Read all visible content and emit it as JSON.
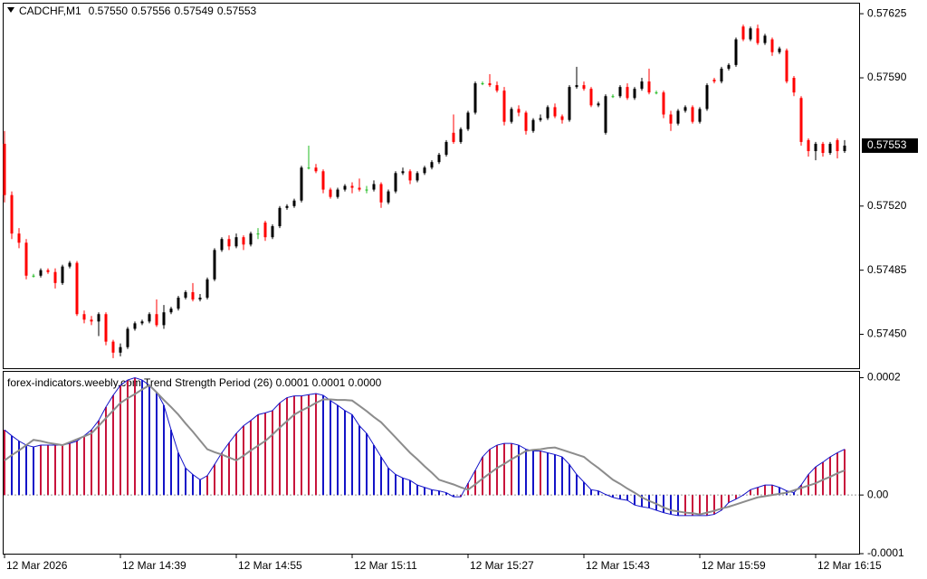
{
  "chart_data": [
    {
      "type": "candlestick",
      "title": "CADCHF,M1",
      "ohlc_labels": [
        "0.57550",
        "0.57556",
        "0.57549",
        "0.57553"
      ],
      "categories": [
        "12 Mar 2026",
        null,
        null,
        null,
        null,
        null,
        null,
        null,
        null,
        null,
        null,
        null,
        null,
        null,
        null,
        null,
        "12 Mar 14:39",
        null,
        null,
        null,
        null,
        null,
        null,
        null,
        null,
        null,
        null,
        null,
        null,
        null,
        null,
        null,
        "12 Mar 14:55",
        null,
        null,
        null,
        null,
        null,
        null,
        null,
        null,
        null,
        null,
        null,
        null,
        null,
        null,
        null,
        "12 Mar 15:11",
        null,
        null,
        null,
        null,
        null,
        null,
        null,
        null,
        null,
        null,
        null,
        null,
        null,
        null,
        null,
        "12 Mar 15:27",
        null,
        null,
        null,
        null,
        null,
        null,
        null,
        null,
        null,
        null,
        null,
        null,
        null,
        null,
        null,
        "12 Mar 15:43",
        null,
        null,
        null,
        null,
        null,
        null,
        null,
        null,
        null,
        null,
        null,
        null,
        null,
        null,
        null,
        "12 Mar 15:59",
        null,
        null,
        null,
        null,
        null,
        null,
        null,
        null,
        null,
        null,
        null,
        null,
        null,
        null,
        null,
        "12 Mar 16:15",
        null,
        null,
        null,
        null
      ],
      "open": [
        0.57554,
        0.57526,
        0.57505,
        0.575,
        0.57482,
        0.57482,
        0.57485,
        0.57484,
        0.57478,
        0.57487,
        0.57489,
        0.57461,
        0.57458,
        0.57457,
        0.57461,
        0.57446,
        0.5744,
        0.57443,
        0.57453,
        0.57456,
        0.57457,
        0.57461,
        0.57455,
        0.57462,
        0.57464,
        0.5747,
        0.57473,
        0.57469,
        0.5747,
        0.5748,
        0.57496,
        0.57502,
        0.57498,
        0.57503,
        0.57499,
        0.57505,
        0.57511,
        0.57503,
        0.57509,
        0.57519,
        0.5752,
        0.57523,
        0.57541,
        0.57541,
        0.57539,
        0.57529,
        0.57525,
        0.57529,
        0.57531,
        0.5753,
        0.57529,
        0.57529,
        0.57532,
        0.57522,
        0.57528,
        0.57538,
        0.57539,
        0.57534,
        0.57538,
        0.57541,
        0.57544,
        0.57548,
        0.5756,
        0.57555,
        0.57562,
        0.57571,
        0.57587,
        0.57587,
        0.57586,
        0.57583,
        0.57566,
        0.57573,
        0.57571,
        0.57561,
        0.57567,
        0.57568,
        0.57574,
        0.57569,
        0.57567,
        0.57585,
        0.57586,
        0.57584,
        0.57575,
        0.5756,
        0.5758,
        0.5758,
        0.57585,
        0.57579,
        0.57584,
        0.57588,
        0.57582,
        0.57582,
        0.5757,
        0.57565,
        0.57572,
        0.57574,
        0.57566,
        0.57573,
        0.57589,
        0.57588,
        0.57595,
        0.57597,
        0.57618,
        0.57611,
        0.57617,
        0.57609,
        0.57611,
        0.57604,
        0.57605,
        0.5759,
        0.57579,
        0.57556,
        0.5755,
        0.57554,
        0.57549,
        0.57556,
        0.5755
      ],
      "high": [
        0.57561,
        0.57528,
        0.57508,
        0.57502,
        0.57483,
        0.57486,
        0.57486,
        0.57486,
        0.57488,
        0.5749,
        0.5749,
        0.57463,
        0.5746,
        0.57462,
        0.57462,
        0.57447,
        0.57445,
        0.57454,
        0.57457,
        0.57458,
        0.57462,
        0.57469,
        0.57466,
        0.57465,
        0.57471,
        0.57474,
        0.57478,
        0.57472,
        0.57481,
        0.57497,
        0.57503,
        0.57504,
        0.57505,
        0.57504,
        0.57506,
        0.57508,
        0.57512,
        0.5751,
        0.5752,
        0.57521,
        0.57524,
        0.57542,
        0.57553,
        0.57543,
        0.5754,
        0.5753,
        0.5753,
        0.57532,
        0.57533,
        0.57535,
        0.57531,
        0.57534,
        0.57533,
        0.57529,
        0.57539,
        0.57541,
        0.5754,
        0.57539,
        0.57542,
        0.57545,
        0.57549,
        0.57556,
        0.5757,
        0.57563,
        0.57572,
        0.57588,
        0.57588,
        0.57592,
        0.57588,
        0.57585,
        0.57574,
        0.57575,
        0.57572,
        0.57568,
        0.5757,
        0.57575,
        0.57576,
        0.5757,
        0.57586,
        0.57596,
        0.57588,
        0.57585,
        0.57577,
        0.57581,
        0.57581,
        0.57586,
        0.57587,
        0.57585,
        0.5759,
        0.57595,
        0.57583,
        0.57583,
        0.57572,
        0.57573,
        0.57575,
        0.57575,
        0.57574,
        0.57587,
        0.5759,
        0.57596,
        0.57598,
        0.57612,
        0.57619,
        0.57618,
        0.57619,
        0.57614,
        0.57612,
        0.57607,
        0.57606,
        0.57591,
        0.5758,
        0.57557,
        0.57555,
        0.57555,
        0.57555,
        0.57557,
        0.57556
      ],
      "low": [
        0.57522,
        0.57502,
        0.57497,
        0.5748,
        0.57481,
        0.57481,
        0.57483,
        0.57475,
        0.57477,
        0.57486,
        0.5746,
        0.57456,
        0.57455,
        0.57449,
        0.57444,
        0.57437,
        0.57438,
        0.57442,
        0.57452,
        0.57455,
        0.57456,
        0.57454,
        0.57453,
        0.57461,
        0.57463,
        0.57469,
        0.57468,
        0.57468,
        0.57469,
        0.57479,
        0.57495,
        0.57496,
        0.57497,
        0.57496,
        0.57498,
        0.57502,
        0.57501,
        0.57502,
        0.57508,
        0.57518,
        0.57519,
        0.57522,
        0.5754,
        0.57538,
        0.57527,
        0.57524,
        0.57524,
        0.57528,
        0.57527,
        0.57528,
        0.57527,
        0.57528,
        0.57519,
        0.57521,
        0.57527,
        0.57537,
        0.57532,
        0.57533,
        0.57537,
        0.5754,
        0.57543,
        0.57547,
        0.57554,
        0.57554,
        0.57561,
        0.5757,
        0.57586,
        0.57585,
        0.57582,
        0.57564,
        0.57565,
        0.57569,
        0.57559,
        0.5756,
        0.57566,
        0.57567,
        0.57568,
        0.57565,
        0.57566,
        0.57584,
        0.57583,
        0.57574,
        0.57574,
        0.57559,
        0.57579,
        0.57579,
        0.57578,
        0.57578,
        0.57583,
        0.57581,
        0.57581,
        0.57568,
        0.57561,
        0.57564,
        0.57571,
        0.57565,
        0.57565,
        0.57572,
        0.57587,
        0.57587,
        0.57594,
        0.57596,
        0.5761,
        0.5761,
        0.57608,
        0.57608,
        0.57602,
        0.57603,
        0.57587,
        0.5758,
        0.57553,
        0.57547,
        0.57545,
        0.57547,
        0.57548,
        0.57546,
        0.57549
      ],
      "close": [
        0.57526,
        0.57505,
        0.575,
        0.57482,
        0.57482,
        0.57485,
        0.57484,
        0.57478,
        0.57487,
        0.57489,
        0.57461,
        0.57458,
        0.57457,
        0.57461,
        0.57446,
        0.5744,
        0.57443,
        0.57453,
        0.57456,
        0.57457,
        0.57461,
        0.57455,
        0.57462,
        0.57464,
        0.5747,
        0.57473,
        0.57469,
        0.5747,
        0.5748,
        0.57496,
        0.57502,
        0.57498,
        0.57503,
        0.57499,
        0.57505,
        0.57505,
        0.57503,
        0.57509,
        0.57519,
        0.5752,
        0.57523,
        0.57541,
        0.57541,
        0.57539,
        0.57529,
        0.57525,
        0.57529,
        0.57531,
        0.5753,
        0.57529,
        0.57529,
        0.57532,
        0.57522,
        0.57528,
        0.57538,
        0.57539,
        0.57534,
        0.57538,
        0.57541,
        0.57544,
        0.57548,
        0.57555,
        0.57555,
        0.57562,
        0.57571,
        0.57587,
        0.57587,
        0.57586,
        0.57583,
        0.57566,
        0.57573,
        0.57571,
        0.57561,
        0.57567,
        0.57568,
        0.57574,
        0.57569,
        0.57567,
        0.57585,
        0.57586,
        0.57584,
        0.57575,
        0.57576,
        0.5758,
        0.5758,
        0.57585,
        0.57579,
        0.57584,
        0.57588,
        0.57582,
        0.57582,
        0.5757,
        0.57565,
        0.57572,
        0.57574,
        0.57566,
        0.57573,
        0.57586,
        0.57588,
        0.57595,
        0.57597,
        0.57611,
        0.57611,
        0.57617,
        0.57609,
        0.57613,
        0.57604,
        0.57606,
        0.57588,
        0.57582,
        0.57555,
        0.5755,
        0.57554,
        0.57549,
        0.57554,
        0.5755,
        0.57553
      ],
      "ylim": [
        0.57431,
        0.57631
      ],
      "yticks": [
        0.57625,
        {
          "value": 0.5759,
          "label": "0.57590"
        },
        {
          "value": 0.5752,
          "label": "0.57520"
        },
        0.57485,
        {
          "value": 0.5745,
          "label": "0.57450"
        }
      ],
      "up_color": "#000000",
      "down_color": "#ff0000",
      "doji_color": "#22bb22",
      "grid": false
    },
    {
      "type": "histogram",
      "title": "forex-indicators.weebly.com Trend Strength Period (26) 0.0001 0.0001 0.0000",
      "values": [
        0.000111,
        0.000101,
        9.2e-05,
        8.5e-05,
        8.2e-05,
        8.5e-05,
        8.5e-05,
        8.5e-05,
        8.5e-05,
        8.8e-05,
        9.2e-05,
        0.000101,
        0.000111,
        0.000127,
        0.00015,
        0.00017,
        0.000187,
        0.000196,
        0.0002,
        0.000196,
        0.000187,
        0.000176,
        0.000153,
        0.000111,
        7.2e-05,
        4.6e-05,
        3.5e-05,
        2.6e-05,
        3.3e-05,
        5.2e-05,
        7.2e-05,
        8.9e-05,
        0.000105,
        0.000118,
        0.000127,
        0.000137,
        0.00014,
        0.000144,
        0.000157,
        0.000166,
        0.000169,
        0.000169,
        0.000171,
        0.000173,
        0.00017,
        0.000161,
        0.000153,
        0.000144,
        0.000137,
        0.000118,
        0.000105,
        8.5e-05,
        6.5e-05,
        4.6e-05,
        3.5e-05,
        2.9e-05,
        2.5e-05,
        1.7e-05,
        1.3e-05,
        9e-06,
        7e-06,
        4e-06,
        -3e-06,
        -3e-06,
        2e-05,
        4.2e-05,
        6.5e-05,
        7.8e-05,
        8.5e-05,
        8.8e-05,
        8.8e-05,
        8.5e-05,
        7.8e-05,
        7.5e-05,
        7.5e-05,
        7.2e-05,
        6.9e-05,
        6.5e-05,
        5.2e-05,
        3.5e-05,
        2.2e-05,
        9e-06,
        7e-06,
        1e-06,
        -4e-06,
        -7e-06,
        -9e-06,
        -1.7e-05,
        -2e-05,
        -2.2e-05,
        -2.6e-05,
        -3e-05,
        -3.3e-05,
        -3.5e-05,
        -3.5e-05,
        -3.5e-05,
        -3.5e-05,
        -3.5e-05,
        -3.3e-05,
        -2.6e-05,
        -1.3e-05,
        -7e-06,
        0,
        9e-06,
        1.3e-05,
        1.7e-05,
        1.7e-05,
        1.3e-05,
        7e-06,
        4e-06,
        1.7e-05,
        3.5e-05,
        4.8e-05,
        5.6e-05,
        6.5e-05,
        7.2e-05,
        7.8e-05
      ],
      "signal": [
        5.9e-05,
        6.8e-05,
        7.6e-05,
        8.5e-05,
        9.4e-05,
        9.2e-05,
        8.9e-05,
        8.7e-05,
        8.5e-05,
        9e-05,
        9.5e-05,
        0.0001,
        0.000105,
        0.000118,
        0.000131,
        0.000144,
        0.000157,
        0.000165,
        0.000172,
        0.00018,
        0.000187,
        0.000175,
        0.000162,
        0.00015,
        0.000137,
        0.000122,
        0.000108,
        9.3e-05,
        7.8e-05,
        7.3e-05,
        6.9e-05,
        6.4e-05,
        5.9e-05,
        6.7e-05,
        7.6e-05,
        8.4e-05,
        9.2e-05,
        0.000103,
        0.000115,
        0.000126,
        0.000137,
        0.000144,
        0.00015,
        0.000157,
        0.000163,
        0.000163,
        0.000162,
        0.000162,
        0.000161,
        0.000152,
        0.000143,
        0.000133,
        0.000124,
        0.000111,
        9.8e-05,
        8.5e-05,
        7.2e-05,
        6.1e-05,
        4.9e-05,
        3.8e-05,
        2.6e-05,
        2.2e-05,
        1.8e-05,
        1.3e-05,
        9e-06,
        1.8e-05,
        2.8e-05,
        3.7e-05,
        4.6e-05,
        5.3e-05,
        6.1e-05,
        6.8e-05,
        7.5e-05,
        7.7e-05,
        7.8e-05,
        8e-05,
        8.1e-05,
        7.7e-05,
        7.3e-05,
        6.9e-05,
        6.5e-05,
        5.5e-05,
        4.6e-05,
        3.6e-05,
        2.6e-05,
        1.9e-05,
        1.1e-05,
        4e-06,
        -4e-06,
        -1e-05,
        -1.5e-05,
        -2.1e-05,
        -2.6e-05,
        -2.8e-05,
        -3e-05,
        -3.1e-05,
        -3.3e-05,
        -3e-05,
        -2.7e-05,
        -2.3e-05,
        -2e-05,
        -1.6e-05,
        -1.2e-05,
        -8e-06,
        -4e-06,
        -2e-06,
        0,
        2e-06,
        4e-06,
        8e-06,
        1.2e-05,
        1.6e-05,
        2e-05,
        2.6e-05,
        3.1e-05,
        3.7e-05,
        4.2e-05
      ],
      "ylim": [
        -0.0001,
        0.00021
      ],
      "yticks": [
        0.0002,
        {
          "value": 0,
          "label": "0.00"
        },
        -0.0001
      ],
      "levels": [
        0
      ],
      "rising_color": "#c8143c",
      "falling_color": "#1414c8",
      "signal_color": "#8c8c8c"
    }
  ]
}
